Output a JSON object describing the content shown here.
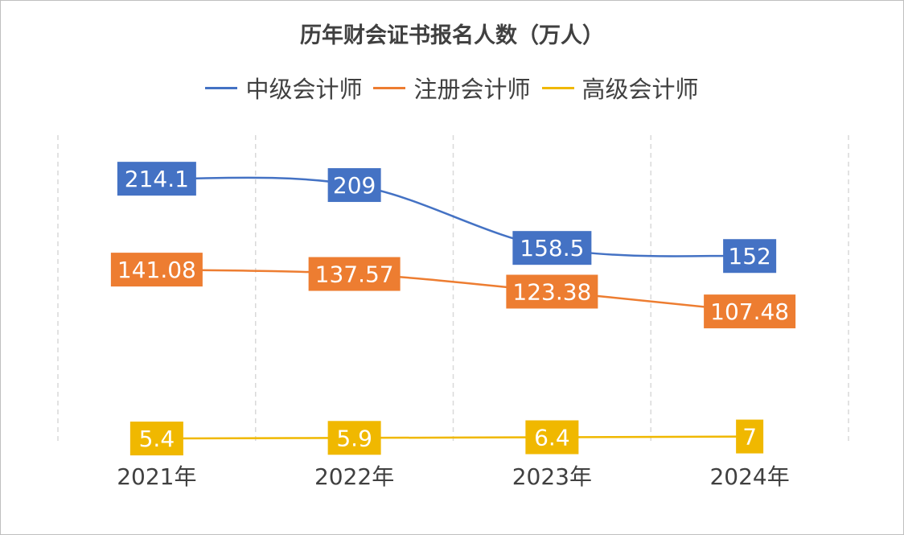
{
  "chart_data": {
    "type": "line",
    "title": "历年财会证书报名人数（万人）",
    "categories": [
      "2021年",
      "2022年",
      "2023年",
      "2024年"
    ],
    "series": [
      {
        "name": "中级会计师",
        "color": "#4472C4",
        "values": [
          214.1,
          209,
          158.5,
          152
        ],
        "labels": [
          "214.1",
          "209",
          "158.5",
          "152"
        ]
      },
      {
        "name": "注册会计师",
        "color": "#ED7D31",
        "values": [
          141.08,
          137.57,
          123.38,
          107.48
        ],
        "labels": [
          "141.08",
          "137.57",
          "123.38",
          "107.48"
        ]
      },
      {
        "name": "高级会计师",
        "color": "#F0B800",
        "values": [
          5.4,
          5.9,
          6.4,
          7
        ],
        "labels": [
          "5.4",
          "5.9",
          "6.4",
          "7"
        ]
      }
    ],
    "ylim": [
      0,
      250
    ],
    "smooth": true,
    "grid": "vertical dashed",
    "legend": "top",
    "data_labels": true
  }
}
